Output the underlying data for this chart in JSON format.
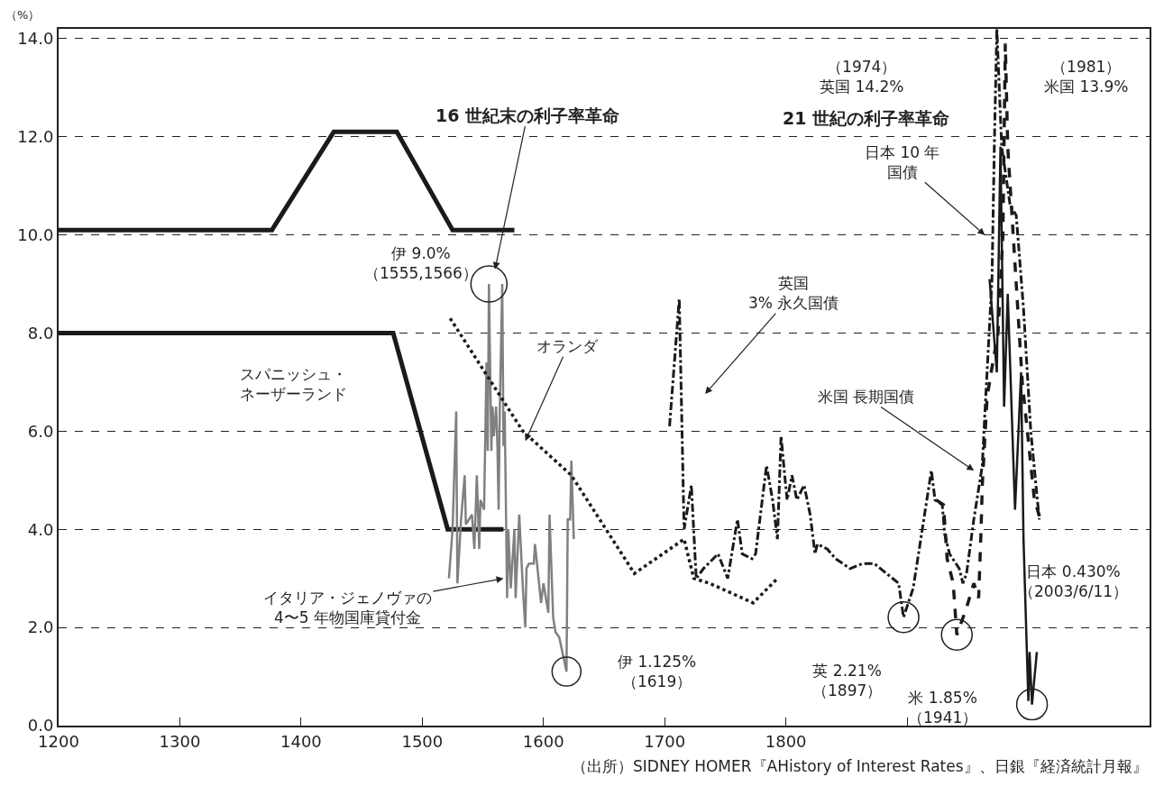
{
  "chart_data": {
    "type": "line",
    "ylabel": "（%）",
    "xlim": [
      1200,
      2100
    ],
    "xticks": [
      1200,
      1300,
      1400,
      1500,
      1600,
      1700,
      1800,
      {
        "value": 1900,
        "label": null
      }
    ],
    "ylim": [
      0,
      14.2
    ],
    "yticks": [
      {
        "value": 0,
        "label": "0.0"
      },
      {
        "value": 2,
        "label": "2.0"
      },
      {
        "value": 4,
        "label": "4.0"
      },
      {
        "value": 6,
        "label": "6.0"
      },
      {
        "value": 8,
        "label": "8.0"
      },
      {
        "value": 10,
        "label": "10.0"
      },
      {
        "value": 12,
        "label": "12.0"
      },
      {
        "value": 14,
        "label": "14.0"
      }
    ],
    "grid": "y",
    "series": [
      {
        "color": "#1a1a1a",
        "line_style": "solid",
        "x": [
          1200,
          1376,
          1427,
          1479,
          1525,
          1576
        ],
        "values": [
          10.1,
          10.1,
          12.1,
          12.1,
          10.1,
          10.1
        ]
      },
      {
        "color": "#1a1a1a",
        "line_style": "solid",
        "x": [
          1200,
          1476,
          1521,
          1567
        ],
        "values": [
          8.0,
          8.0,
          4.0,
          4.0
        ]
      },
      {
        "color": "#808080",
        "line_style": "solid",
        "x": [
          1522,
          1525,
          1528,
          1529,
          1532,
          1535,
          1536,
          1541,
          1543,
          1545,
          1547,
          1548,
          1551,
          1553,
          1554,
          1555,
          1557,
          1558,
          1559,
          1561,
          1562,
          1563,
          1564,
          1566,
          1567,
          1568,
          1570,
          1571,
          1573,
          1576,
          1577,
          1580,
          1583,
          1585,
          1586,
          1588,
          1592,
          1593,
          1598,
          1600,
          1602,
          1604,
          1605,
          1608,
          1610,
          1613,
          1619,
          1620,
          1622,
          1623,
          1625
        ],
        "values": [
          3.0,
          4.0,
          6.4,
          2.9,
          4.2,
          5.1,
          4.1,
          4.3,
          3.6,
          5.1,
          3.6,
          4.6,
          4.4,
          7.4,
          5.6,
          9.0,
          5.6,
          6.5,
          5.9,
          6.5,
          5.7,
          4.4,
          6.5,
          9.0,
          5.7,
          6.4,
          2.6,
          4.0,
          2.8,
          4.0,
          2.6,
          4.3,
          2.8,
          2.0,
          3.2,
          3.3,
          3.3,
          3.7,
          2.5,
          2.9,
          2.6,
          2.3,
          4.3,
          2.2,
          1.9,
          1.8,
          1.1,
          4.2,
          4.2,
          5.4,
          3.8
        ]
      },
      {
        "color": "#1a1a1a",
        "line_style": "dotted",
        "x": [
          1523,
          1583,
          1623,
          1675,
          1716,
          1724,
          1737,
          1773,
          1793
        ],
        "values": [
          8.3,
          6.0,
          5.1,
          3.1,
          3.8,
          3.0,
          2.9,
          2.5,
          3.0
        ]
      },
      {
        "color": "#1a1a1a",
        "line_style": "dashdot",
        "x": [
          1704,
          1712,
          1716,
          1722,
          1726,
          1732,
          1744,
          1752,
          1760,
          1764,
          1772,
          1775,
          1784,
          1789,
          1793,
          1796,
          1799,
          1801,
          1805,
          1809,
          1815,
          1820,
          1824,
          1826,
          1834,
          1841,
          1853,
          1863,
          1873,
          1893,
          1897,
          1905,
          1920,
          1923,
          1929,
          1931,
          1935,
          1943,
          1946,
          1949,
          1955,
          1962,
          1964,
          1970,
          1972,
          1974,
          1978,
          1985,
          1990,
          1996,
          2002,
          2009
        ],
        "values": [
          6.1,
          8.7,
          4.0,
          4.9,
          3.0,
          3.2,
          3.5,
          3.0,
          4.2,
          3.5,
          3.4,
          3.5,
          5.3,
          4.6,
          3.8,
          5.9,
          5.1,
          4.6,
          5.1,
          4.6,
          4.9,
          4.3,
          3.5,
          3.7,
          3.6,
          3.4,
          3.2,
          3.3,
          3.3,
          2.9,
          2.21,
          2.8,
          5.2,
          4.6,
          4.5,
          3.9,
          3.5,
          3.2,
          2.9,
          3.1,
          4.2,
          5.3,
          6.3,
          9.1,
          11.9,
          14.2,
          11.8,
          10.6,
          10.4,
          8.5,
          6.0,
          4.2
        ]
      },
      {
        "color": "#1a1a1a",
        "line_style": "dashed",
        "x": [
          1924,
          1930,
          1933,
          1938,
          1941,
          1949,
          1955,
          1959,
          1961,
          1962,
          1966,
          1970,
          1975,
          1979,
          1981,
          1983,
          1985,
          1990,
          1995,
          2000,
          2005,
          2010
        ],
        "values": [
          4.6,
          4.5,
          3.4,
          2.9,
          1.85,
          2.4,
          2.9,
          2.6,
          4.0,
          4.9,
          6.7,
          7.3,
          8.0,
          10.0,
          13.9,
          11.8,
          11.0,
          9.0,
          7.0,
          5.8,
          4.6,
          4.2
        ]
      },
      {
        "color": "#1a1a1a",
        "line_style": "solid",
        "x": [
          1968,
          1974,
          1977,
          1980,
          1983,
          1989,
          1994,
          1996,
          2000,
          2001,
          2003,
          2007
        ],
        "values": [
          9.1,
          7.2,
          11.8,
          6.5,
          8.8,
          4.4,
          7.2,
          3.8,
          0.5,
          1.5,
          0.43,
          1.5
        ]
      }
    ],
    "annotations": [
      {
        "text": "16 世紀末の利子率革命",
        "x": 1560,
        "y": 9.3
      },
      "21 世紀の利子率革命",
      {
        "text": "伊 9.0%\n（1555,1566）",
        "x": 1555,
        "y": 9.0
      },
      "スパニッシュ・ネーザーランド",
      {
        "text": "オランダ",
        "x": 1585,
        "y": 5.8
      },
      "英国\n3% 永久国債",
      "米国 長期国債",
      "日本 10 年国債",
      {
        "text": "イタリア・ジェノヴァの\n4〜5 年物国庫貸付金",
        "x": 1567,
        "y": 3.0
      },
      "伊 1.125%\n（1619）",
      "英 2.21%\n（1897）",
      "米 1.85%\n（1941）",
      "日本 0.430%\n（2003/6/11）",
      "（1974）英国 14.2%",
      "（1981）米国 13.9%",
      "（出所）SIDNEY HOMER『AHistory of Interest Rates』、日銀『経済統計月報』"
    ]
  }
}
